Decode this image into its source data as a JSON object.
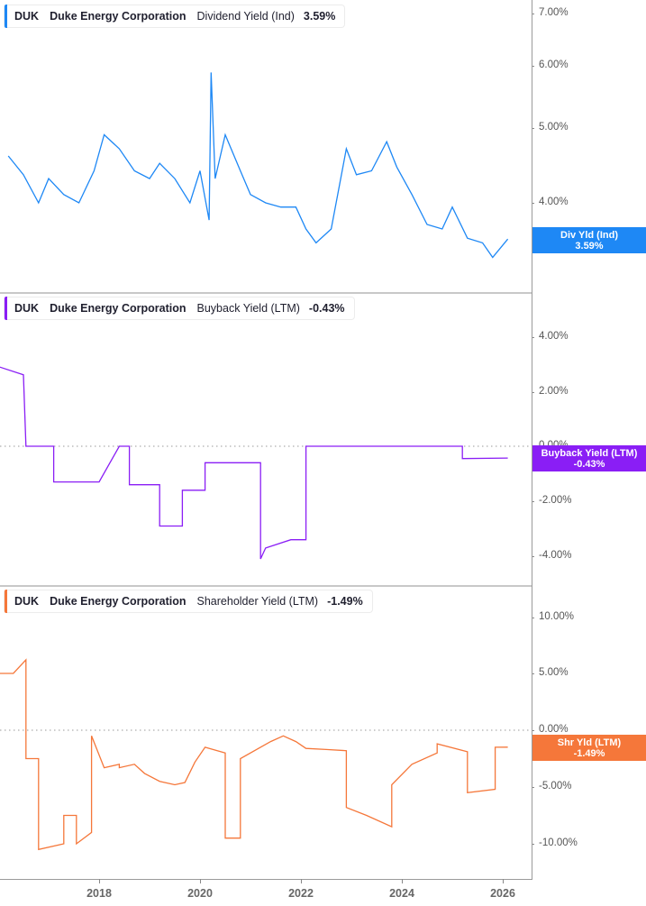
{
  "chart_data": [
    {
      "type": "line",
      "title": "DUK Duke Energy Corporation Dividend Yield (Ind)",
      "legend": {
        "ticker": "DUK",
        "company": "Duke Energy Corporation",
        "metric": "Dividend Yield (Ind)",
        "value": "3.59%"
      },
      "color": "#1e88f5",
      "yticks": [
        "7.00%",
        "6.00%",
        "5.00%",
        "4.00%"
      ],
      "yscale": "log",
      "ylim": [
        3.2,
        7.2
      ],
      "last_label": {
        "name": "Div Yld (Ind)",
        "value": "3.59%"
      },
      "x": [
        2016.2,
        2016.5,
        2016.8,
        2017.0,
        2017.3,
        2017.6,
        2017.9,
        2018.1,
        2018.4,
        2018.7,
        2019.0,
        2019.2,
        2019.5,
        2019.8,
        2020.0,
        2020.18,
        2020.22,
        2020.3,
        2020.5,
        2020.8,
        2021.0,
        2021.3,
        2021.6,
        2021.9,
        2022.1,
        2022.3,
        2022.6,
        2022.9,
        2023.1,
        2023.4,
        2023.7,
        2023.9,
        2024.2,
        2024.5,
        2024.8,
        2025.0,
        2025.3,
        2025.6,
        2025.8,
        2026.1
      ],
      "values": [
        4.6,
        4.35,
        4.0,
        4.3,
        4.1,
        4.0,
        4.4,
        4.9,
        4.7,
        4.4,
        4.3,
        4.5,
        4.3,
        4.0,
        4.4,
        3.8,
        5.9,
        4.3,
        4.9,
        4.4,
        4.1,
        4.0,
        3.95,
        3.95,
        3.7,
        3.55,
        3.7,
        4.7,
        4.35,
        4.4,
        4.8,
        4.45,
        4.1,
        3.75,
        3.7,
        3.95,
        3.6,
        3.55,
        3.4,
        3.59
      ]
    },
    {
      "type": "line",
      "title": "DUK Duke Energy Corporation Buyback Yield (LTM)",
      "legend": {
        "ticker": "DUK",
        "company": "Duke Energy Corporation",
        "metric": "Buyback Yield (LTM)",
        "value": "-0.43%"
      },
      "color": "#8a1ef5",
      "yticks": [
        "4.00%",
        "2.00%",
        "0.00%",
        "-2.00%",
        "-4.00%"
      ],
      "ylim": [
        -4.5,
        5
      ],
      "last_label": {
        "name": "Buyback Yield (LTM)",
        "value": "-0.43%"
      },
      "x": [
        2016.0,
        2016.5,
        2016.55,
        2017.1,
        2017.1,
        2018.0,
        2018.4,
        2018.6,
        2018.6,
        2019.2,
        2019.2,
        2019.65,
        2019.65,
        2020.1,
        2020.1,
        2020.5,
        2020.5,
        2021.2,
        2021.2,
        2021.3,
        2021.8,
        2022.1,
        2022.1,
        2025.2,
        2025.2,
        2026.1
      ],
      "values": [
        2.9,
        2.6,
        0.0,
        0.0,
        -1.3,
        -1.3,
        -0.0,
        0.0,
        -1.4,
        -1.4,
        -2.9,
        -2.9,
        -1.6,
        -1.6,
        -0.6,
        -0.6,
        -0.6,
        -0.6,
        -4.1,
        -3.7,
        -3.4,
        -3.4,
        0.0,
        0.0,
        -0.45,
        -0.43
      ]
    },
    {
      "type": "line",
      "title": "DUK Duke Energy Corporation Shareholder Yield (LTM)",
      "legend": {
        "ticker": "DUK",
        "company": "Duke Energy Corporation",
        "metric": "Shareholder Yield (LTM)",
        "value": "-1.49%"
      },
      "color": "#f5773a",
      "yticks": [
        "10.00%",
        "5.00%",
        "0.00%",
        "-5.00%",
        "-10.00%"
      ],
      "ylim": [
        -11.5,
        12
      ],
      "last_label": {
        "name": "Shr Yld (LTM)",
        "value": "-1.49%"
      },
      "x": [
        2016.0,
        2016.3,
        2016.55,
        2016.55,
        2016.8,
        2016.8,
        2017.3,
        2017.3,
        2017.55,
        2017.55,
        2017.85,
        2017.85,
        2018.1,
        2018.4,
        2018.4,
        2018.7,
        2018.9,
        2019.2,
        2019.5,
        2019.7,
        2019.9,
        2020.1,
        2020.5,
        2020.5,
        2020.8,
        2020.8,
        2021.4,
        2021.65,
        2021.9,
        2022.1,
        2022.5,
        2022.9,
        2022.9,
        2023.3,
        2023.8,
        2023.8,
        2024.2,
        2024.7,
        2024.7,
        2025.3,
        2025.3,
        2025.85,
        2025.85,
        2026.1
      ],
      "values": [
        5.0,
        5.0,
        6.2,
        -2.5,
        -2.5,
        -10.5,
        -10.0,
        -7.5,
        -7.5,
        -10.0,
        -9.0,
        -0.5,
        -3.3,
        -3.0,
        -3.3,
        -3.0,
        -3.8,
        -4.5,
        -4.8,
        -4.6,
        -2.8,
        -1.5,
        -2.0,
        -9.5,
        -9.5,
        -2.5,
        -1.0,
        -0.5,
        -1.0,
        -1.6,
        -1.7,
        -1.8,
        -6.8,
        -7.5,
        -8.5,
        -4.8,
        -3.0,
        -2.0,
        -1.2,
        -1.9,
        -5.5,
        -5.2,
        -1.5,
        -1.49
      ]
    }
  ],
  "xaxis": {
    "ticks": [
      "2018",
      "2020",
      "2022",
      "2024",
      "2026"
    ]
  }
}
